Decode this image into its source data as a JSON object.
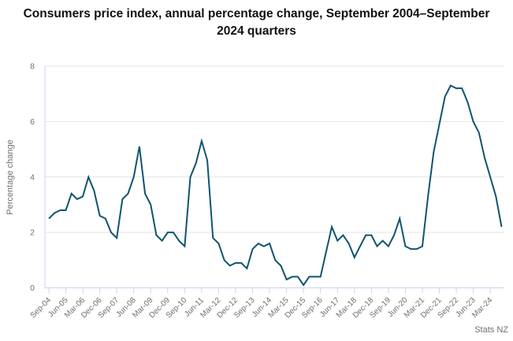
{
  "header": {
    "title": "Consumers price index, annual percentage change, September 2004–September 2024 quarters"
  },
  "source": {
    "label": "Stats NZ"
  },
  "chart_data": {
    "type": "line",
    "title": "Consumers price index, annual percentage change, September 2004–September 2024 quarters",
    "xlabel": "",
    "ylabel": "Percentage change",
    "ylim": [
      0,
      8
    ],
    "y_ticks": [
      0,
      2,
      4,
      6,
      8
    ],
    "grid": "horizontal",
    "legend_position": "none",
    "x_tick_labels": [
      "Sep-04",
      "Jun-05",
      "Mar-06",
      "Dec-06",
      "Sep-07",
      "Jun-08",
      "Mar-09",
      "Dec-09",
      "Sep-10",
      "Jun-11",
      "Mar-12",
      "Dec-12",
      "Sep-13",
      "Jun-14",
      "Mar-15",
      "Dec-15",
      "Sep-16",
      "Jun-17",
      "Mar-18",
      "Dec-18",
      "Sep-19",
      "Jun-20",
      "Mar-21",
      "Dec-21",
      "Sep-22",
      "Jun-23",
      "Mar-24"
    ],
    "points_per_tick": 3,
    "x_start": "Sep-04",
    "x_end": "Sep-24",
    "series": [
      {
        "name": "CPI annual percentage change",
        "values": [
          2.5,
          2.7,
          2.8,
          2.8,
          3.4,
          3.2,
          3.3,
          4.0,
          3.5,
          2.6,
          2.5,
          2.0,
          1.8,
          3.2,
          3.4,
          4.0,
          5.1,
          3.4,
          3.0,
          1.9,
          1.7,
          2.0,
          2.0,
          1.7,
          1.5,
          4.0,
          4.5,
          5.3,
          4.6,
          1.8,
          1.6,
          1.0,
          0.8,
          0.9,
          0.9,
          0.7,
          1.4,
          1.6,
          1.5,
          1.6,
          1.0,
          0.8,
          0.3,
          0.4,
          0.4,
          0.1,
          0.4,
          0.4,
          0.4,
          1.3,
          2.2,
          1.7,
          1.9,
          1.6,
          1.1,
          1.5,
          1.9,
          1.9,
          1.5,
          1.7,
          1.5,
          1.9,
          2.5,
          1.5,
          1.4,
          1.4,
          1.5,
          3.3,
          4.9,
          5.9,
          6.9,
          7.3,
          7.2,
          7.2,
          6.7,
          6.0,
          5.6,
          4.7,
          4.0,
          3.3,
          2.2
        ]
      }
    ],
    "colors": {
      "line": "#0f5470",
      "grid": "#e4e4e6",
      "axis": "#ccd4ee",
      "tick_label": "#6f6f6f",
      "title": "#111111",
      "source": "#6f6f6f"
    }
  }
}
